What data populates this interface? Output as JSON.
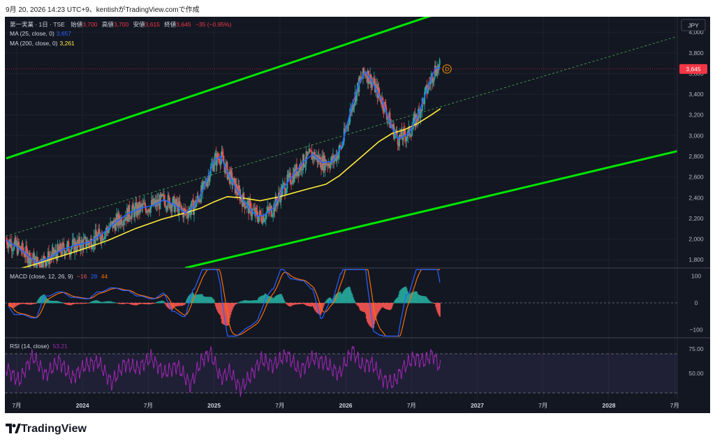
{
  "caption": "9月 20, 2026 14:23 UTC+9、kentishがTradingView.comで作成",
  "brand": "TradingView",
  "header": {
    "symbol": "第一実業 · 1日 · TSE",
    "open_label": "始値",
    "open": "3,700",
    "high_label": "高値",
    "high": "3,700",
    "low_label": "安値",
    "low": "3,615",
    "close_label": "終値",
    "close": "3,645",
    "change": "−35 (−0.95%)",
    "ma25_label": "MA (25, close, 0)",
    "ma25_value": "3,657",
    "ma200_label": "MA (200, close, 0)",
    "ma200_value": "3,261",
    "macd_label": "MACD (close, 12, 26, 9)",
    "macd_hist": "−16",
    "macd_line": "28",
    "macd_signal": "44",
    "rsi_label": "RSI (14, close)",
    "rsi_value": "53.21",
    "currency": "JPY",
    "last_price_tag": "3,645",
    "marker": "D"
  },
  "chart_data": {
    "type": "line",
    "price_axis": {
      "ticks": [
        "4,000",
        "3,800",
        "3,600",
        "3,400",
        "3,200",
        "3,000",
        "2,800",
        "2,600",
        "2,400",
        "2,200",
        "2,000",
        "1,800"
      ],
      "ylim": [
        1720,
        4150
      ]
    },
    "macd_axis": {
      "ticks": [
        "100",
        "0",
        "−100"
      ],
      "ylim": [
        -125,
        125
      ]
    },
    "rsi_axis": {
      "ticks": [
        "75.00",
        "50.00"
      ],
      "ylim": [
        25,
        85
      ],
      "band": [
        30,
        70
      ]
    },
    "time_axis": {
      "ticks": [
        "7月",
        "2024",
        "7月",
        "2025",
        "7月",
        "2026",
        "7月",
        "2027",
        "7月",
        "2028",
        "7月"
      ],
      "tick_times": [
        2023.5,
        2024.0,
        2024.5,
        2025.0,
        2025.5,
        2026.0,
        2026.5,
        2027.0,
        2027.5,
        2028.0,
        2028.5
      ],
      "xlim": [
        2023.41,
        2028.52
      ]
    },
    "series": [
      {
        "name": "MA (25, close, 0)",
        "color": "#2962ff",
        "x": [
          2023.42,
          2023.55,
          2023.65,
          2023.75,
          2023.85,
          2023.95,
          2024.05,
          2024.15,
          2024.25,
          2024.35,
          2024.45,
          2024.55,
          2024.62,
          2024.7,
          2024.78,
          2024.85,
          2024.92,
          2025.0,
          2025.05,
          2025.1,
          2025.17,
          2025.22,
          2025.28,
          2025.33,
          2025.38,
          2025.45,
          2025.52,
          2025.6,
          2025.68,
          2025.75,
          2025.82,
          2025.9,
          2025.97,
          2026.05,
          2026.1,
          2026.15,
          2026.2,
          2026.28,
          2026.35,
          2026.4,
          2026.48,
          2026.55,
          2026.62,
          2026.68,
          2026.72
        ],
        "y": [
          1990,
          1880,
          1770,
          1820,
          1900,
          1940,
          1970,
          2050,
          2160,
          2250,
          2300,
          2330,
          2380,
          2330,
          2250,
          2320,
          2490,
          2760,
          2800,
          2650,
          2480,
          2380,
          2280,
          2220,
          2230,
          2300,
          2480,
          2620,
          2750,
          2820,
          2740,
          2750,
          2900,
          3300,
          3500,
          3620,
          3520,
          3330,
          3080,
          2970,
          3020,
          3200,
          3450,
          3650,
          3660
        ]
      },
      {
        "name": "MA (200, close, 0)",
        "color": "#ffeb3b",
        "x": [
          2023.42,
          2023.6,
          2023.8,
          2024.0,
          2024.2,
          2024.4,
          2024.6,
          2024.8,
          2024.9,
          2025.0,
          2025.1,
          2025.2,
          2025.35,
          2025.5,
          2025.7,
          2025.85,
          2025.95,
          2026.05,
          2026.15,
          2026.25,
          2026.35,
          2026.45,
          2026.55,
          2026.65,
          2026.72
        ],
        "y": [
          1680,
          1740,
          1820,
          1900,
          1990,
          2100,
          2190,
          2260,
          2300,
          2360,
          2410,
          2400,
          2370,
          2410,
          2480,
          2530,
          2610,
          2720,
          2830,
          2940,
          3020,
          3060,
          3120,
          3200,
          3261
        ]
      },
      {
        "name": "RSI (14, close)",
        "color": "#9c27b0",
        "x": [
          2023.42,
          2023.52,
          2023.62,
          2023.72,
          2023.82,
          2023.92,
          2024.02,
          2024.12,
          2024.22,
          2024.32,
          2024.42,
          2024.52,
          2024.62,
          2024.72,
          2024.82,
          2024.9,
          2024.97,
          2025.05,
          2025.12,
          2025.2,
          2025.28,
          2025.36,
          2025.45,
          2025.55,
          2025.65,
          2025.75,
          2025.85,
          2025.95,
          2026.05,
          2026.12,
          2026.2,
          2026.28,
          2026.36,
          2026.44,
          2026.52,
          2026.6,
          2026.66,
          2026.72
        ],
        "y": [
          55,
          42,
          68,
          48,
          63,
          45,
          58,
          62,
          40,
          60,
          55,
          66,
          50,
          58,
          38,
          62,
          72,
          45,
          52,
          34,
          48,
          64,
          58,
          70,
          52,
          66,
          60,
          49,
          74,
          58,
          60,
          44,
          40,
          56,
          66,
          62,
          70,
          55
        ]
      }
    ],
    "channel": {
      "upper": [
        [
          2023.42,
          2780
        ],
        [
          2028.52,
          4960
        ]
      ],
      "middle": [
        [
          2023.42,
          2030
        ],
        [
          2028.52,
          3960
        ]
      ],
      "lower": [
        [
          2024.78,
          1720
        ],
        [
          2028.52,
          2850
        ]
      ]
    }
  }
}
